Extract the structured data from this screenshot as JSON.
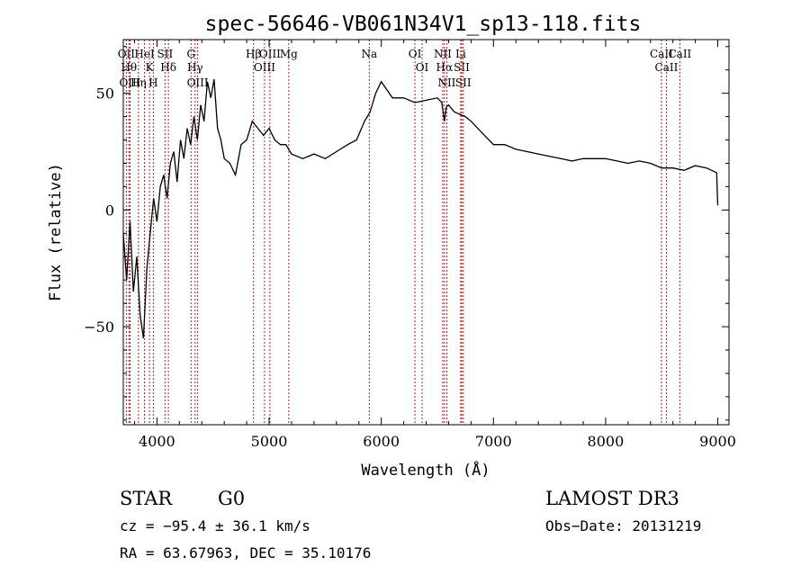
{
  "chart_data": {
    "type": "line",
    "title": "spec-56646-VB061N34V1_sp13-118.fits",
    "xlabel": "Wavelength (Å)",
    "ylabel": "Flux (relative)",
    "xlim": [
      3700,
      9100
    ],
    "ylim": [
      -92,
      73
    ],
    "xticks": [
      4000,
      5000,
      6000,
      7000,
      8000,
      9000
    ],
    "yticks": [
      -50,
      0,
      50
    ],
    "grid": false,
    "line_color": "#000000",
    "marker_color": "#b22222",
    "series": [
      {
        "x": [
          3700,
          3730,
          3760,
          3790,
          3820,
          3850,
          3880,
          3910,
          3940,
          3970,
          4000,
          4030,
          4060,
          4090,
          4120,
          4150,
          4180,
          4210,
          4240,
          4270,
          4300,
          4330,
          4360,
          4390,
          4420,
          4450,
          4480,
          4510,
          4540,
          4570,
          4600,
          4650,
          4700,
          4750,
          4800,
          4850,
          4900,
          4950,
          5000,
          5050,
          5100,
          5150,
          5200,
          5300,
          5400,
          5500,
          5600,
          5700,
          5780,
          5850,
          5900,
          5950,
          6000,
          6100,
          6200,
          6300,
          6400,
          6500,
          6540,
          6563,
          6580,
          6600,
          6650,
          6700,
          6750,
          6800,
          6900,
          7000,
          7100,
          7200,
          7300,
          7400,
          7500,
          7600,
          7700,
          7800,
          7900,
          8000,
          8100,
          8200,
          8300,
          8400,
          8500,
          8600,
          8700,
          8800,
          8900,
          8990,
          9000
        ],
        "y": [
          -10,
          -30,
          -5,
          -35,
          -20,
          -45,
          -55,
          -25,
          -10,
          5,
          -5,
          10,
          15,
          5,
          20,
          25,
          12,
          30,
          22,
          35,
          28,
          40,
          30,
          45,
          38,
          55,
          48,
          56,
          35,
          30,
          22,
          20,
          15,
          28,
          30,
          38,
          35,
          32,
          35,
          30,
          28,
          28,
          24,
          22,
          24,
          22,
          25,
          28,
          30,
          38,
          42,
          50,
          55,
          48,
          48,
          46,
          47,
          48,
          46,
          38,
          44,
          45,
          42,
          41,
          40,
          38,
          33,
          28,
          28,
          26,
          25,
          24,
          23,
          22,
          21,
          22,
          22,
          22,
          21,
          20,
          21,
          20,
          18,
          18,
          17,
          19,
          18,
          16,
          2
        ]
      }
    ],
    "line_markers": [
      {
        "label": "OII",
        "x": 3727
      },
      {
        "label": "Hθ",
        "x": 3750
      },
      {
        "label": "OIII",
        "x": 3760
      },
      {
        "label": "Hη",
        "x": 3835
      },
      {
        "label": "HeI",
        "x": 3889
      },
      {
        "label": "K",
        "x": 3934
      },
      {
        "label": "H",
        "x": 3968
      },
      {
        "label": "SII",
        "x": 4072
      },
      {
        "label": "Hδ",
        "x": 4102
      },
      {
        "label": "G",
        "x": 4304
      },
      {
        "label": "Hγ",
        "x": 4340
      },
      {
        "label": "OIII",
        "x": 4363
      },
      {
        "label": "Hβ",
        "x": 4861
      },
      {
        "label": "OIII",
        "x": 4959
      },
      {
        "label": "OIII",
        "x": 5007
      },
      {
        "label": "Mg",
        "x": 5175
      },
      {
        "label": "Na",
        "x": 5893
      },
      {
        "label": "OI",
        "x": 6300
      },
      {
        "label": "OI",
        "x": 6364
      },
      {
        "label": "NII",
        "x": 6548
      },
      {
        "label": "Hα",
        "x": 6563
      },
      {
        "label": "NII",
        "x": 6584
      },
      {
        "label": "Li",
        "x": 6708
      },
      {
        "label": "SII",
        "x": 6717
      },
      {
        "label": "SII",
        "x": 6731
      },
      {
        "label": "CaII",
        "x": 8498
      },
      {
        "label": "CaII",
        "x": 8542
      },
      {
        "label": "CaII",
        "x": 8662
      }
    ]
  },
  "footer": {
    "object_type": "STAR",
    "subclass": "G0",
    "survey": "LAMOST DR3",
    "cz": "cz = −95.4 ± 36.1 km/s",
    "obs_date": "Obs−Date: 20131219",
    "coords": "RA =  63.67963, DEC =  35.10176"
  }
}
